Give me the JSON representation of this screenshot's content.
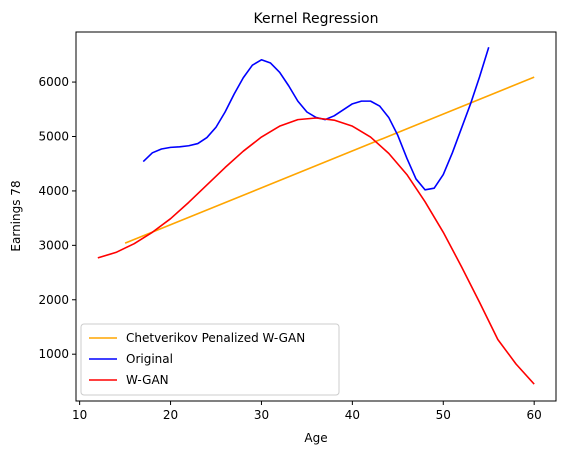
{
  "chart_data": {
    "type": "line",
    "title": "Kernel Regression",
    "xlabel": "Age",
    "ylabel": "Earnings 78",
    "xlim": [
      9.6,
      62.4
    ],
    "ylim": [
      140,
      6920
    ],
    "xticks": [
      10,
      20,
      30,
      40,
      50,
      60
    ],
    "yticks": [
      1000,
      2000,
      3000,
      4000,
      5000,
      6000
    ],
    "grid": false,
    "legend_position": "lower-left",
    "series": [
      {
        "name": "Chetverikov Penalized W-GAN",
        "color": "#FFA500",
        "x": [
          15,
          60
        ],
        "y": [
          3040,
          6090
        ]
      },
      {
        "name": "Original",
        "color": "#0000FF",
        "x": [
          17,
          18,
          19,
          20,
          21,
          22,
          23,
          24,
          25,
          26,
          27,
          28,
          29,
          30,
          31,
          32,
          33,
          34,
          35,
          36,
          37,
          38,
          39,
          40,
          41,
          42,
          43,
          44,
          45,
          46,
          47,
          48,
          49,
          50,
          51,
          52,
          53,
          54,
          55
        ],
        "y": [
          4540,
          4700,
          4770,
          4800,
          4810,
          4830,
          4870,
          4980,
          5170,
          5450,
          5780,
          6080,
          6310,
          6410,
          6350,
          6180,
          5930,
          5650,
          5450,
          5350,
          5310,
          5380,
          5490,
          5600,
          5650,
          5650,
          5560,
          5350,
          5020,
          4600,
          4220,
          4020,
          4050,
          4300,
          4700,
          5150,
          5600,
          6100,
          6640
        ]
      },
      {
        "name": "W-GAN",
        "color": "#FF0000",
        "x": [
          12,
          14,
          16,
          18,
          20,
          22,
          24,
          26,
          28,
          30,
          32,
          34,
          36,
          38,
          40,
          42,
          44,
          46,
          48,
          50,
          52,
          54,
          56,
          58,
          60
        ],
        "y": [
          2770,
          2870,
          3030,
          3240,
          3490,
          3790,
          4110,
          4430,
          4730,
          4990,
          5190,
          5310,
          5340,
          5300,
          5190,
          4990,
          4690,
          4300,
          3800,
          3240,
          2610,
          1950,
          1270,
          820,
          450
        ]
      }
    ]
  }
}
